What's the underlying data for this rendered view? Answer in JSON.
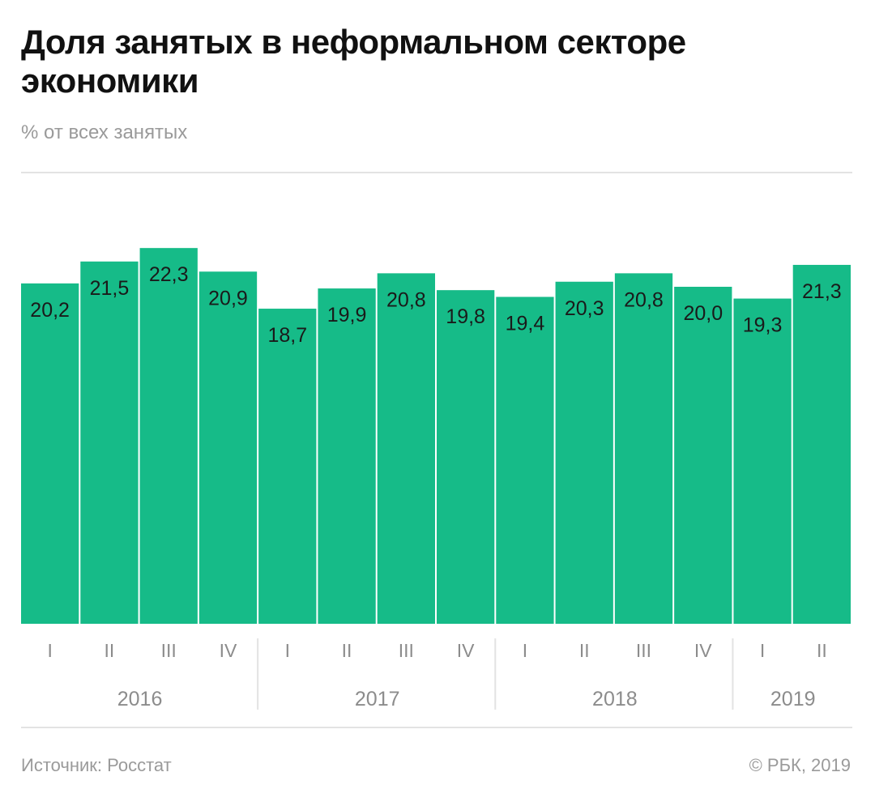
{
  "header": {
    "title": "Доля занятых в неформальном секторе экономики",
    "subtitle": "% от всех занятых"
  },
  "footer": {
    "source": "Источник: Росстат",
    "copyright": "© РБК, 2019"
  },
  "colors": {
    "bar": "#16bb88",
    "text": "#1a1a1a",
    "muted": "#8c8c8c",
    "rule": "#e3e3e3"
  },
  "chart_data": {
    "type": "bar",
    "title": "Доля занятых в неформальном секторе экономики",
    "ylabel": "% от всех занятых",
    "xlabel": "",
    "categories": [
      "I",
      "II",
      "III",
      "IV",
      "I",
      "II",
      "III",
      "IV",
      "I",
      "II",
      "III",
      "IV",
      "I",
      "II"
    ],
    "years": [
      {
        "label": "2016",
        "count": 4
      },
      {
        "label": "2017",
        "count": 4
      },
      {
        "label": "2018",
        "count": 4
      },
      {
        "label": "2019",
        "count": 2
      }
    ],
    "values": [
      20.2,
      21.5,
      22.3,
      20.9,
      18.7,
      19.9,
      20.8,
      19.8,
      19.4,
      20.3,
      20.8,
      20.0,
      19.3,
      21.3
    ],
    "value_labels": [
      "20,2",
      "21,5",
      "22,3",
      "20,9",
      "18,7",
      "19,9",
      "20,8",
      "19,8",
      "19,4",
      "20,3",
      "20,8",
      "20,0",
      "19,3",
      "21,3"
    ],
    "ylim": [
      0,
      24
    ],
    "grid": false,
    "legend": "none"
  }
}
